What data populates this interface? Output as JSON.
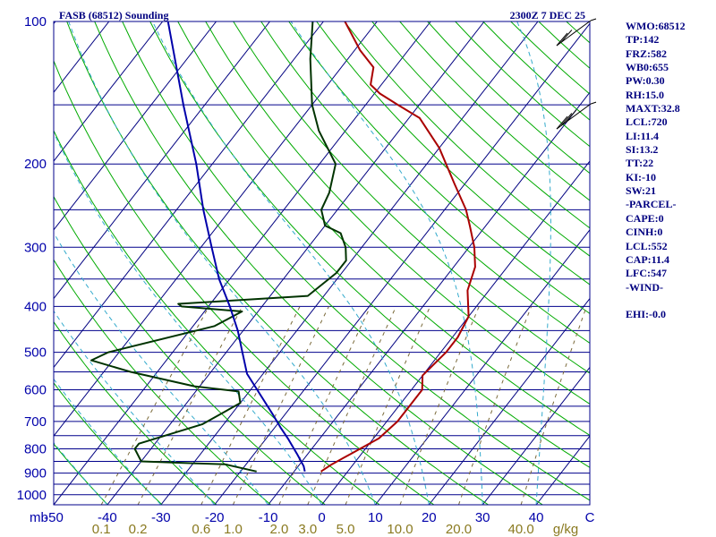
{
  "chart_data": {
    "type": "line",
    "title": "FASB (68512) Sounding",
    "valid_time": "2300Z  7 DEC 25",
    "pressure_axis_label": "mb",
    "pressure_ticks": [
      100,
      200,
      300,
      400,
      500,
      600,
      700,
      800,
      900,
      1000
    ],
    "pressure_range_mb": [
      1050,
      100
    ],
    "temperature_ticks": [
      "-50",
      "-40",
      "-30",
      "-20",
      "-10",
      "0",
      "10",
      "20",
      "30",
      "40",
      "C"
    ],
    "temperature_range_c": [
      -50,
      50
    ],
    "mixing_ratio_label": "g/kg",
    "mixing_ratio_ticks": [
      "0.1",
      "0.2",
      "0.6",
      "1.0",
      "2.0",
      "3.0",
      "5.0",
      "10.0",
      "20.0",
      "40.0"
    ],
    "series": [
      {
        "name": "Temperature",
        "color": "#aa0000",
        "points": [
          [
            893,
            -5
          ],
          [
            862,
            -4
          ],
          [
            820,
            -2
          ],
          [
            760,
            1
          ],
          [
            700,
            2
          ],
          [
            650,
            2
          ],
          [
            600,
            2
          ],
          [
            560,
            0
          ],
          [
            500,
            1
          ],
          [
            465,
            1
          ],
          [
            420,
            0
          ],
          [
            370,
            -4
          ],
          [
            330,
            -6
          ],
          [
            300,
            -9
          ],
          [
            270,
            -13
          ],
          [
            250,
            -16
          ],
          [
            220,
            -22
          ],
          [
            185,
            -30
          ],
          [
            160,
            -38
          ],
          [
            150,
            -44
          ],
          [
            142,
            -49
          ],
          [
            136,
            -52
          ],
          [
            125,
            -54
          ],
          [
            115,
            -59
          ],
          [
            100,
            -66
          ]
        ]
      },
      {
        "name": "Dewpoint",
        "color": "#003300",
        "points": [
          [
            893,
            -17
          ],
          [
            862,
            -24
          ],
          [
            858,
            -30
          ],
          [
            850,
            -40
          ],
          [
            800,
            -43
          ],
          [
            780,
            -43
          ],
          [
            710,
            -34
          ],
          [
            640,
            -30
          ],
          [
            605,
            -32
          ],
          [
            590,
            -41
          ],
          [
            550,
            -55
          ],
          [
            520,
            -64
          ],
          [
            500,
            -62
          ],
          [
            440,
            -46
          ],
          [
            410,
            -43
          ],
          [
            400,
            -55
          ],
          [
            395,
            -56
          ],
          [
            380,
            -33
          ],
          [
            340,
            -31
          ],
          [
            320,
            -31
          ],
          [
            300,
            -33
          ],
          [
            280,
            -36
          ],
          [
            270,
            -40
          ],
          [
            250,
            -43
          ],
          [
            230,
            -44
          ],
          [
            200,
            -47
          ],
          [
            170,
            -55
          ],
          [
            150,
            -60
          ],
          [
            120,
            -67
          ],
          [
            100,
            -72
          ]
        ]
      },
      {
        "name": "Parcel",
        "color": "#0000aa",
        "points": [
          [
            893,
            -8
          ],
          [
            870,
            -9
          ],
          [
            820,
            -12
          ],
          [
            760,
            -16
          ],
          [
            720,
            -19
          ],
          [
            680,
            -22
          ],
          [
            620,
            -27
          ],
          [
            555,
            -33
          ],
          [
            500,
            -37
          ],
          [
            450,
            -41
          ],
          [
            400,
            -46
          ],
          [
            350,
            -52
          ],
          [
            300,
            -58
          ],
          [
            250,
            -65
          ],
          [
            200,
            -73
          ],
          [
            150,
            -84
          ],
          [
            100,
            -99
          ]
        ]
      }
    ],
    "wind_barbs": [
      {
        "pressure_mb": 100,
        "label": "upper-wind-barb"
      },
      {
        "pressure_mb": 150,
        "label": "lower-wind-barb"
      }
    ]
  },
  "stats": [
    "WMO:68512",
    "TP:142",
    "FRZ:582",
    "WB0:655",
    "PW:0.30",
    "RH:15.0",
    "MAXT:32.8",
    "LCL:720",
    "LI:11.4",
    "SI:13.2",
    "TT:22",
    "KI:-10",
    "SW:21",
    "-PARCEL-",
    "CAPE:0",
    "CINH:0",
    "LCL:552",
    "CAP:11.4",
    "LFC:547",
    "-WIND-",
    "",
    "EHI:-0.0"
  ],
  "colors": {
    "isobar": "#00008b",
    "isotherm": "#000080",
    "dry_adiabat": "#00aa00",
    "moist_adiabat": "#33aacc",
    "mixing_ratio": "#7a6a3a",
    "temperature": "#aa0000",
    "dewpoint": "#003300",
    "parcel": "#0000aa",
    "text": "#000080"
  }
}
